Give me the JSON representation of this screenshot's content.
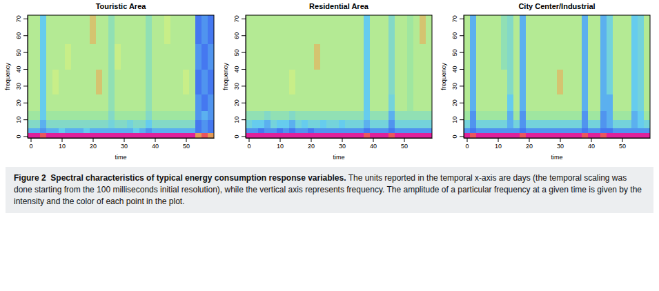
{
  "chart_data": [
    {
      "type": "heatmap",
      "title": "Touristic Area",
      "xlabel": "time",
      "ylabel": "frequency",
      "xlim": [
        -1,
        59
      ],
      "xticks": [
        0,
        10,
        20,
        30,
        40,
        50
      ],
      "ylim": [
        -1,
        72
      ],
      "yticks": [
        0,
        10,
        20,
        30,
        40,
        50,
        60,
        70
      ],
      "zlim": [
        0,
        10
      ],
      "x_edges": [
        -1,
        1,
        3,
        5,
        7,
        9,
        11,
        13,
        15,
        17,
        19,
        21,
        23,
        25,
        27,
        29,
        31,
        33,
        35,
        37,
        39,
        41,
        43,
        45,
        47,
        49,
        51,
        53,
        55,
        57,
        59
      ],
      "y_edges": [
        -1,
        2,
        5,
        10,
        15,
        25,
        40,
        55,
        72
      ],
      "z": [
        [
          10,
          10,
          9,
          10,
          10,
          10,
          10,
          10,
          10,
          10,
          10,
          10,
          10,
          10,
          10,
          10,
          10,
          10,
          10,
          10,
          10,
          10,
          10,
          10,
          10,
          10,
          10,
          8,
          9,
          8
        ],
        [
          3.5,
          3.5,
          3,
          3.5,
          3.5,
          4,
          3.5,
          3.5,
          3.5,
          4,
          3.5,
          3.5,
          3.5,
          3.5,
          3.5,
          3.5,
          3.5,
          4,
          3.5,
          3,
          3.5,
          3.5,
          3.5,
          3.5,
          3.5,
          3.5,
          3.5,
          2.5,
          3,
          2.5
        ],
        [
          5,
          5,
          3.5,
          5,
          5,
          5,
          5,
          5,
          5,
          5,
          5,
          5,
          5,
          4.5,
          5,
          5,
          4.5,
          5,
          5,
          4,
          5,
          5,
          5,
          5,
          5,
          5,
          5,
          2.5,
          3,
          2.5
        ],
        [
          6,
          6,
          4,
          6,
          6,
          6,
          6,
          6,
          6,
          6,
          6,
          6,
          6,
          5,
          6,
          6,
          6,
          6,
          6,
          5,
          6,
          6,
          6,
          6,
          6,
          6,
          6,
          3,
          3.5,
          3
        ],
        [
          6.5,
          6.5,
          4,
          6.5,
          6.5,
          6.5,
          6.5,
          6.5,
          6.5,
          6.5,
          6.5,
          6.5,
          6.5,
          5.5,
          6.5,
          6.5,
          6.5,
          6.5,
          6.5,
          5.5,
          6.5,
          6.5,
          6.5,
          6.5,
          6.5,
          6.5,
          6.5,
          3,
          2.5,
          3
        ],
        [
          6.5,
          6.5,
          4,
          6.5,
          7,
          6.5,
          6.5,
          6.5,
          6.5,
          6.5,
          6.5,
          7.5,
          6.5,
          5.5,
          6.5,
          6.5,
          6.5,
          6.5,
          6.5,
          5.5,
          6.5,
          6.5,
          6.5,
          6.5,
          6.5,
          7,
          6.5,
          2.5,
          3,
          2.5
        ],
        [
          6.5,
          6.5,
          4,
          6.5,
          6.5,
          6.5,
          7,
          6.5,
          6.5,
          6.5,
          6.5,
          6.5,
          6.5,
          5.5,
          7,
          6.5,
          6.5,
          6.5,
          6.5,
          5.5,
          6.5,
          6.5,
          6.5,
          6.5,
          6.5,
          6.5,
          6.5,
          3,
          2.5,
          3
        ],
        [
          6.5,
          6.5,
          4,
          6.5,
          6.5,
          6.5,
          6.5,
          6.5,
          6.5,
          6.5,
          7.5,
          6.5,
          6.5,
          5.5,
          6.5,
          6.5,
          6.5,
          6.5,
          6.5,
          5.5,
          6.5,
          6.5,
          7,
          6.5,
          6.5,
          6.5,
          6.5,
          2.5,
          3,
          2.5
        ]
      ]
    },
    {
      "type": "heatmap",
      "title": "Residential Area",
      "xlabel": "time",
      "ylabel": "frequency",
      "xlim": [
        -1,
        59
      ],
      "xticks": [
        0,
        10,
        20,
        30,
        40,
        50
      ],
      "ylim": [
        -1,
        72
      ],
      "yticks": [
        0,
        10,
        20,
        30,
        40,
        50,
        60,
        70
      ],
      "zlim": [
        0,
        10
      ],
      "x_edges": [
        -1,
        1,
        3,
        5,
        7,
        9,
        11,
        13,
        15,
        17,
        19,
        21,
        23,
        25,
        27,
        29,
        31,
        33,
        35,
        37,
        39,
        41,
        43,
        45,
        47,
        49,
        51,
        53,
        55,
        57,
        59
      ],
      "y_edges": [
        -1,
        2,
        5,
        10,
        15,
        25,
        40,
        55,
        72
      ],
      "z": [
        [
          10,
          10,
          10,
          10,
          10,
          10,
          10,
          10,
          10,
          10,
          10,
          10,
          10,
          10,
          10,
          10,
          10,
          10,
          10,
          9,
          10,
          10,
          10,
          9,
          10,
          10,
          10,
          10,
          10,
          10
        ],
        [
          3,
          3,
          2.5,
          3,
          3,
          2.5,
          3,
          2.5,
          3,
          3,
          2.5,
          3,
          3,
          3,
          3,
          3,
          3,
          3,
          3,
          2.5,
          3,
          3,
          3,
          2.5,
          3,
          3,
          3,
          3,
          3,
          3
        ],
        [
          4.5,
          4,
          4,
          3.5,
          4.5,
          4,
          4,
          3.5,
          4.5,
          4,
          4.5,
          4.5,
          4,
          4.5,
          4.5,
          4,
          4.5,
          4.5,
          4.5,
          3.5,
          4.5,
          4.5,
          4.5,
          3,
          4.5,
          4.5,
          4.5,
          4.5,
          4.5,
          4.5
        ],
        [
          5.5,
          5.5,
          5.5,
          5,
          5.5,
          5.5,
          5.5,
          5,
          5.5,
          5.5,
          5.5,
          5.5,
          5.5,
          5.5,
          5.5,
          5.5,
          5.5,
          5.5,
          5.5,
          4,
          5.5,
          5.5,
          5.5,
          3.5,
          5.5,
          5.5,
          5.5,
          5.5,
          5.5,
          5.5
        ],
        [
          6.5,
          6.5,
          6.5,
          6.5,
          6.5,
          6.5,
          6.5,
          6.5,
          6.5,
          6.5,
          6.5,
          6.5,
          6.5,
          6.5,
          6.5,
          6.5,
          6.5,
          6.5,
          6.5,
          4,
          6.5,
          6.5,
          6.5,
          4.5,
          6.5,
          6.5,
          6,
          6.5,
          6.5,
          6.5
        ],
        [
          6.5,
          6.5,
          6.5,
          6.5,
          6.5,
          6.5,
          6.5,
          7,
          6.5,
          6.5,
          6.5,
          6.5,
          6.5,
          6.5,
          6.5,
          6.5,
          6.5,
          6.5,
          6.5,
          4,
          6.5,
          6.5,
          6.5,
          5,
          6.5,
          6.5,
          6,
          6.5,
          6.5,
          6.5
        ],
        [
          6.5,
          6.5,
          6.5,
          6.5,
          6.5,
          6.5,
          6.5,
          6.5,
          6.5,
          6.5,
          6.5,
          7.5,
          6.5,
          6.5,
          6.5,
          6.5,
          6.5,
          6.5,
          6.5,
          4,
          6.5,
          6.5,
          6.5,
          5,
          6.5,
          6.5,
          6,
          6.5,
          6.5,
          6.5
        ],
        [
          6.5,
          6.5,
          6.5,
          6.5,
          6.5,
          6.5,
          6.5,
          6.5,
          6.5,
          6.5,
          6.5,
          6.5,
          6.5,
          6.5,
          6.5,
          6.5,
          6.5,
          6.5,
          6.5,
          4,
          6.5,
          6.5,
          6.5,
          5,
          6.5,
          6.5,
          6,
          6.5,
          7.5,
          6.5
        ]
      ]
    },
    {
      "type": "heatmap",
      "title": "City Center/Industrial",
      "xlabel": "time",
      "ylabel": "frequency",
      "xlim": [
        -1,
        59
      ],
      "xticks": [
        0,
        10,
        20,
        30,
        40,
        50
      ],
      "ylim": [
        -1,
        72
      ],
      "yticks": [
        0,
        10,
        20,
        30,
        40,
        50,
        60,
        70
      ],
      "zlim": [
        0,
        10
      ],
      "x_edges": [
        -1,
        1,
        3,
        5,
        7,
        9,
        11,
        13,
        15,
        17,
        19,
        21,
        23,
        25,
        27,
        29,
        31,
        33,
        35,
        37,
        39,
        41,
        43,
        45,
        47,
        49,
        51,
        53,
        55,
        57,
        59
      ],
      "y_edges": [
        -1,
        2,
        5,
        10,
        15,
        25,
        40,
        55,
        72
      ],
      "z": [
        [
          10,
          9,
          10,
          10,
          10,
          10,
          10,
          10,
          10,
          9,
          10,
          10,
          10,
          10,
          10,
          10,
          10,
          10,
          10,
          9,
          10,
          10,
          9,
          10,
          10,
          10,
          10,
          10,
          10,
          10
        ],
        [
          3,
          2.5,
          3,
          3,
          3,
          3,
          3,
          3,
          3,
          2.5,
          3,
          3,
          3,
          3,
          3,
          3,
          3,
          3,
          3,
          2.5,
          3,
          3,
          2.5,
          2.5,
          3,
          3,
          3,
          3,
          3,
          3
        ],
        [
          4.5,
          3,
          4.5,
          4.5,
          4.5,
          4.5,
          4.5,
          3.5,
          4.5,
          3,
          4.5,
          4.5,
          4.5,
          4.5,
          4.5,
          4.5,
          4.5,
          4.5,
          4.5,
          3,
          4.5,
          4.5,
          3,
          3.5,
          4.5,
          4.5,
          4.5,
          3.5,
          4,
          4.5
        ],
        [
          6,
          3,
          6,
          6,
          6,
          6,
          6,
          3.5,
          6,
          3,
          6,
          6,
          6,
          6,
          6,
          6,
          6,
          6,
          6,
          3,
          6,
          6,
          3,
          3.5,
          6,
          6,
          6,
          3.5,
          4,
          6
        ],
        [
          6.5,
          3.5,
          6.5,
          6.5,
          6.5,
          6.5,
          6.5,
          4,
          6.5,
          3.5,
          6.5,
          6.5,
          6.5,
          6.5,
          6.5,
          6.5,
          6.5,
          6.5,
          6.5,
          3.5,
          6.5,
          6.5,
          3.5,
          3.5,
          6.5,
          6.5,
          6.5,
          4,
          4.5,
          6.5
        ],
        [
          6.5,
          3.5,
          6.5,
          6.5,
          6.5,
          6.5,
          6.5,
          5,
          6.5,
          3.5,
          6.5,
          6.5,
          6.5,
          6.5,
          6.5,
          7.5,
          6.5,
          6.5,
          6.5,
          3.5,
          6.5,
          6.5,
          3.5,
          4.5,
          6.5,
          6.5,
          6.5,
          4,
          4.5,
          6.5
        ],
        [
          6.5,
          3.5,
          6.5,
          6.5,
          6.5,
          6.5,
          5.5,
          5,
          6.5,
          3.5,
          6.5,
          6.5,
          6.5,
          6.5,
          6.5,
          6.5,
          6.5,
          6.5,
          6.5,
          3.5,
          6.5,
          6.5,
          3.5,
          4.5,
          6.5,
          6.5,
          6.5,
          4,
          4.5,
          6.5
        ],
        [
          6.5,
          3.5,
          6.5,
          6.5,
          6.5,
          6.5,
          5.5,
          5,
          6.5,
          3.5,
          6.5,
          6.5,
          6.5,
          6.5,
          6.5,
          6.5,
          6.5,
          6.5,
          6.5,
          3.5,
          6.5,
          6.5,
          3.5,
          4.5,
          6.5,
          6.5,
          6.5,
          4,
          4.5,
          6.5
        ]
      ]
    }
  ],
  "caption": {
    "label": "Figure 2",
    "title": "Spectral characteristics of typical energy consumption response variables.",
    "text": "The units reported in the temporal x-axis are days (the temporal scaling was done starting from the 100 milliseconds initial resolution), while the vertical axis represents frequency. The amplitude of a particular frequency at a given time is given by the intensity and the color of each point in the plot."
  }
}
